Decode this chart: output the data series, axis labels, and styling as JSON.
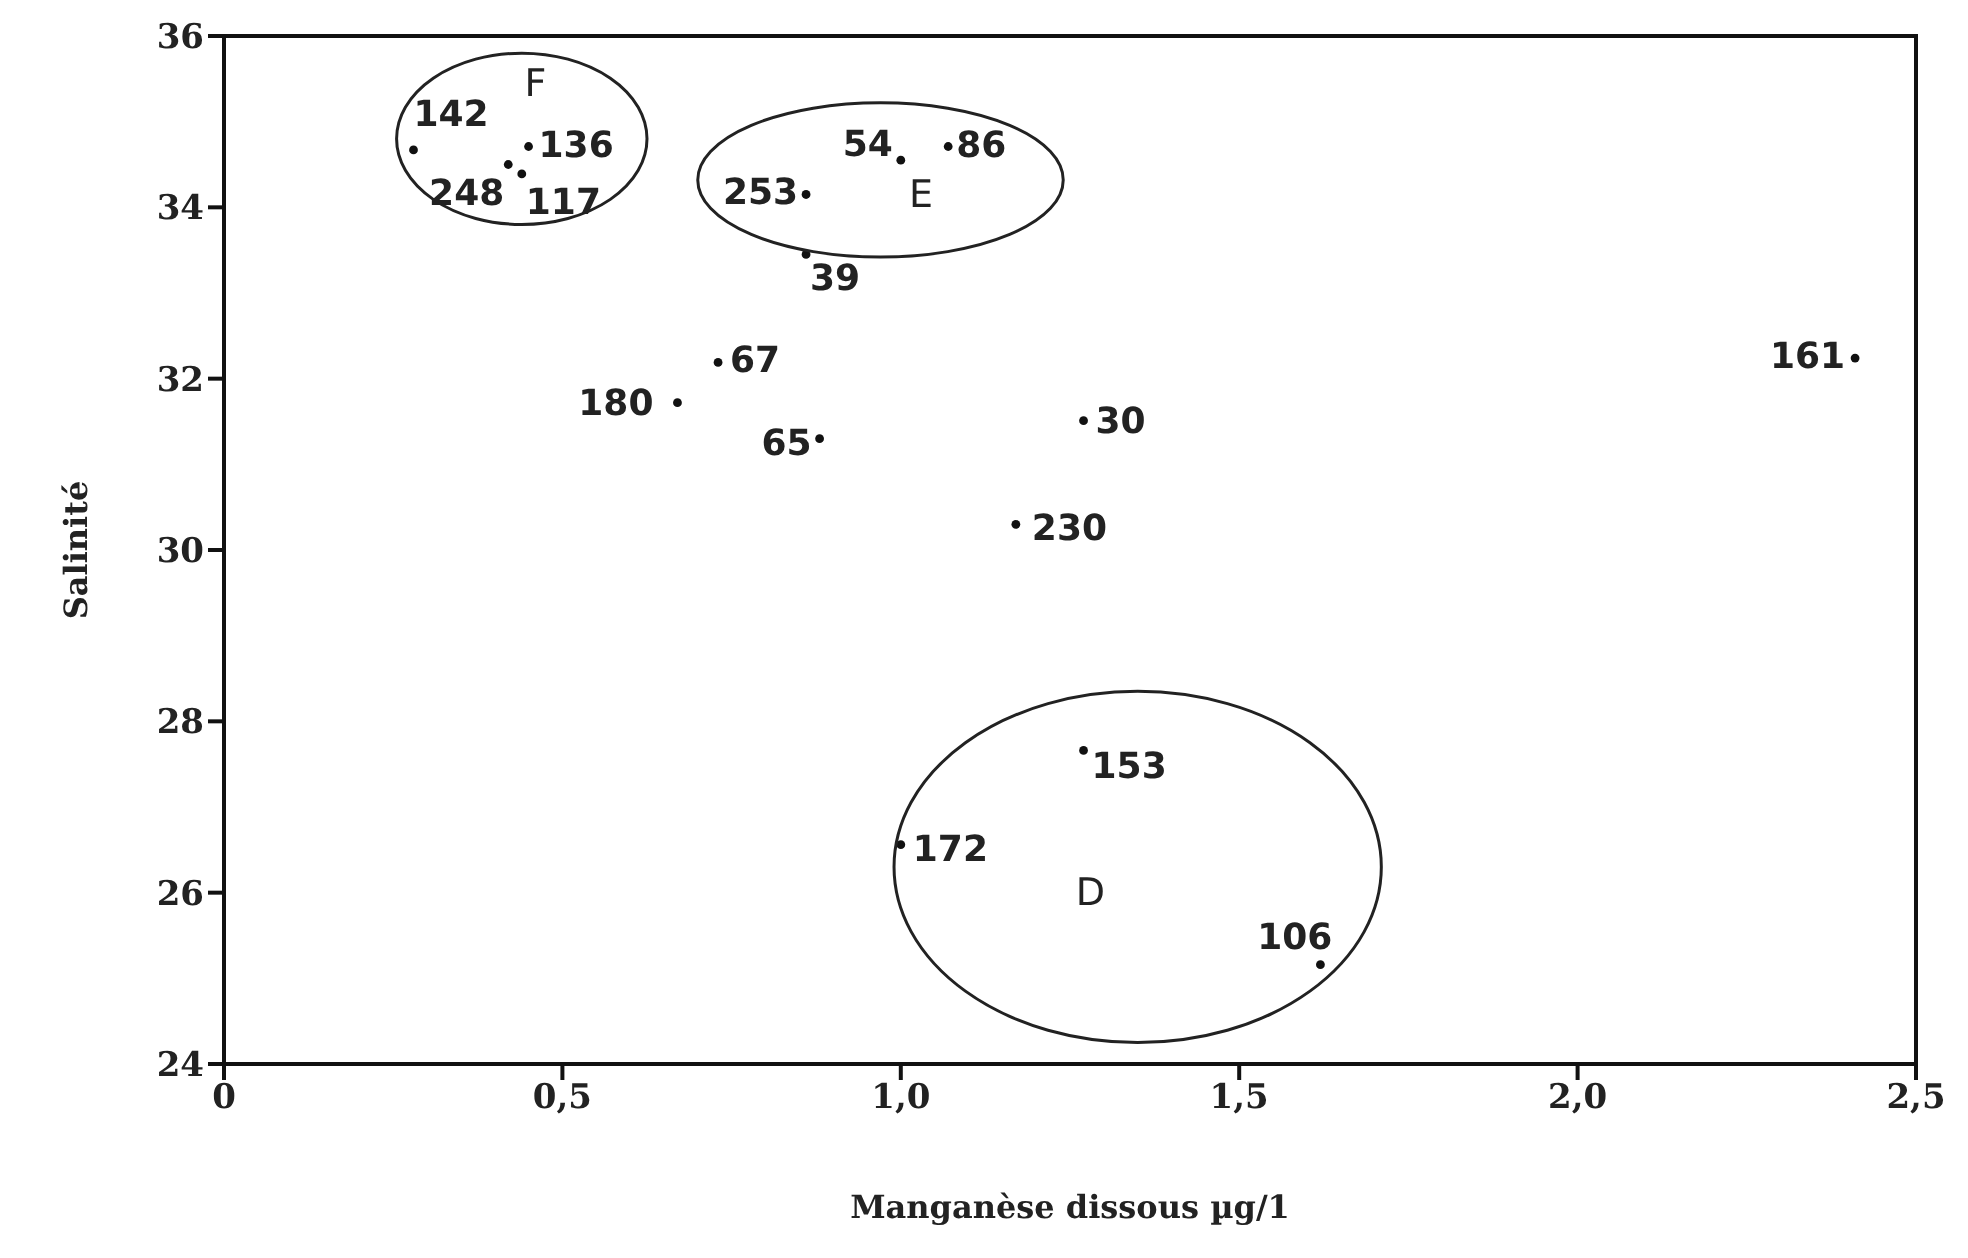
{
  "chart_data": {
    "type": "scatter",
    "xlabel": "Manganèse dissous µg/1",
    "ylabel": "Salinité",
    "x": [
      0.28,
      0.45,
      0.42,
      0.44,
      0.86,
      1.0,
      1.07,
      0.86,
      0.73,
      0.67,
      0.88,
      1.27,
      1.17,
      1.27,
      1.0,
      1.62,
      2.41
    ],
    "series": [
      {
        "color": "#111111",
        "values": [
          34.67,
          34.71,
          34.5,
          34.39,
          34.15,
          34.55,
          34.71,
          33.45,
          32.19,
          31.72,
          31.3,
          31.51,
          30.3,
          27.66,
          26.56,
          25.16,
          32.24
        ]
      }
    ],
    "xlim": [
      0,
      2.5
    ],
    "xticks": [
      0,
      {
        "value": 0.5,
        "label": "0,5"
      },
      {
        "value": 1.0,
        "label": "1,0"
      },
      {
        "value": 1.5,
        "label": "1,5"
      },
      {
        "value": 2.0,
        "label": "2,0"
      },
      {
        "value": 2.5,
        "label": "2,5"
      }
    ],
    "ylim": [
      24,
      36
    ],
    "yticks": [
      24,
      26,
      28,
      30,
      32,
      34,
      36
    ],
    "grid": false,
    "legend": false,
    "marker": "circle",
    "annotations": [
      {
        "text": "142",
        "x": 0.28,
        "y": 34.67
      },
      {
        "text": "136",
        "x": 0.45,
        "y": 34.71
      },
      {
        "text": "248",
        "x": 0.42,
        "y": 34.5
      },
      {
        "text": "117",
        "x": 0.44,
        "y": 34.39
      },
      {
        "text": "253",
        "x": 0.86,
        "y": 34.15
      },
      {
        "text": "54",
        "x": 1.0,
        "y": 34.55
      },
      {
        "text": "86",
        "x": 1.07,
        "y": 34.71
      },
      {
        "text": "39",
        "x": 0.86,
        "y": 33.45
      },
      {
        "text": "67",
        "x": 0.73,
        "y": 32.19
      },
      {
        "text": "180",
        "x": 0.67,
        "y": 31.72
      },
      {
        "text": "65",
        "x": 0.88,
        "y": 31.3
      },
      {
        "text": "30",
        "x": 1.27,
        "y": 31.51
      },
      {
        "text": "230",
        "x": 1.17,
        "y": 30.3
      },
      {
        "text": "153",
        "x": 1.27,
        "y": 27.66
      },
      {
        "text": "172",
        "x": 1.0,
        "y": 26.56
      },
      {
        "text": "106",
        "x": 1.62,
        "y": 25.16
      },
      {
        "text": "161",
        "x": 2.41,
        "y": 32.24
      },
      "F",
      "E",
      "D"
    ]
  }
}
